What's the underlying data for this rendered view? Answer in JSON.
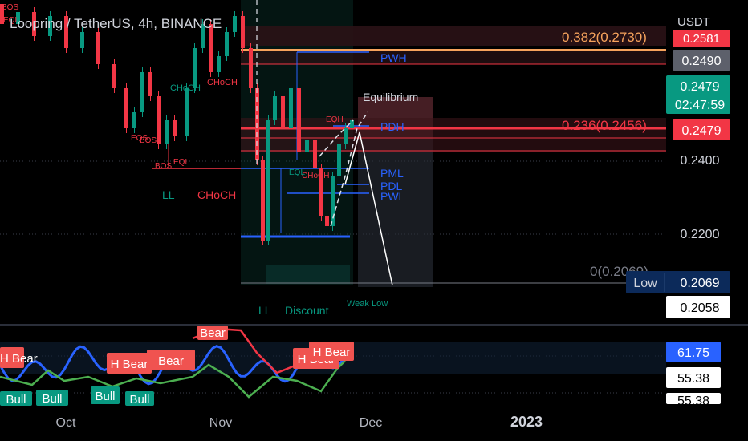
{
  "header": {
    "title": "Loopring / TetherUS, 4h, BINANCE",
    "currency": "USDT"
  },
  "chart_data": {
    "type": "candlestick",
    "symbol": "Loopring / TetherUS",
    "interval": "4h",
    "exchange": "BINANCE",
    "price_axis": {
      "unit": "USDT",
      "ticks": [
        "0.2400",
        "0.2200"
      ],
      "labels": [
        {
          "text": "0.2581",
          "color": "#f23645",
          "kind": "partial"
        },
        {
          "text": "0.2490",
          "color": "#5d606b",
          "kind": "tag"
        },
        {
          "text": "0.2479",
          "color": "#089981",
          "kind": "last"
        },
        {
          "text": "02:47:59",
          "color": "#089981",
          "kind": "countdown"
        },
        {
          "text": "0.2479",
          "color": "#f23645",
          "kind": "tag"
        },
        {
          "text": "0.2069",
          "color": "#0c2a5a",
          "kind": "low"
        },
        {
          "text": "Low",
          "color": "#0c2a5a",
          "kind": "low-label"
        },
        {
          "text": "0.2058",
          "color": "#ffffff",
          "kind": "crosshair"
        }
      ]
    },
    "time_axis": [
      "Oct",
      "Nov",
      "Dec",
      "2023"
    ],
    "fibonacci": [
      {
        "label": "0.382(0.2730)",
        "value": 0.273,
        "color": "#f7a35c"
      },
      {
        "label": "0.236(0.2456)",
        "value": 0.2456,
        "color": "#f23645"
      },
      {
        "label": "0(0.2069)",
        "value": 0.2069,
        "color": "#787b86"
      }
    ],
    "levels": [
      {
        "label": "PWH",
        "color": "#2962ff"
      },
      {
        "label": "PDH",
        "color": "#2962ff"
      },
      {
        "label": "PML",
        "color": "#2962ff"
      },
      {
        "label": "PDL",
        "color": "#2962ff"
      },
      {
        "label": "PWL",
        "color": "#2962ff"
      }
    ],
    "annotations": [
      {
        "text": "Equilibrium",
        "color": "#d1d4dc"
      },
      {
        "text": "EQH",
        "color": "#f23645"
      },
      {
        "text": "Weak Low",
        "color": "#089981"
      },
      {
        "text": "Discount",
        "color": "#089981"
      },
      {
        "text": "LL",
        "color": "#089981"
      },
      {
        "text": "LL",
        "color": "#089981"
      },
      {
        "text": "CHoCH",
        "color": "#f23645"
      },
      {
        "text": "CHoCH",
        "color": "#089981"
      },
      {
        "text": "CHoCH",
        "color": "#f23645"
      },
      {
        "text": "CHoCH",
        "color": "#f23645"
      },
      {
        "text": "BOS",
        "color": "#f23645"
      },
      {
        "text": "BOS",
        "color": "#f23645"
      },
      {
        "text": "BOS",
        "color": "#f23645"
      },
      {
        "text": "EQL",
        "color": "#f23645"
      },
      {
        "text": "EQL",
        "color": "#f23645"
      },
      {
        "text": "EQS",
        "color": "#f23645"
      },
      {
        "text": "EQL",
        "color": "#089981"
      }
    ],
    "oscillator": {
      "labels": [
        "61.75",
        "55.38",
        "55.38"
      ],
      "bear_tags": [
        "Bear",
        "H Bear",
        "H Bear",
        "Bear",
        "H Bear",
        "H Bear",
        "H Bear"
      ],
      "bull_tags": [
        "Bull",
        "Bull",
        "Bull",
        "Bull"
      ]
    },
    "colors": {
      "background": "#000000",
      "bull": "#089981",
      "bear": "#f23645",
      "level": "#2962ff",
      "grid": "#2a2e39"
    }
  }
}
